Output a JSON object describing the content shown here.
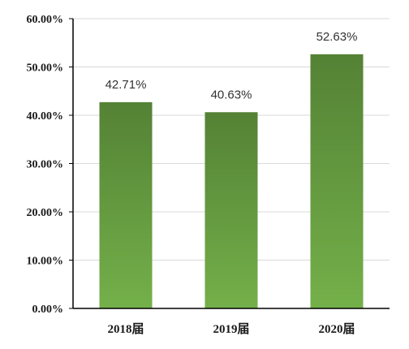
{
  "chart_data": {
    "type": "bar",
    "categories": [
      "2018届",
      "2019届",
      "2020届"
    ],
    "values": [
      42.71,
      40.63,
      52.63
    ],
    "data_labels": [
      "42.71%",
      "40.63%",
      "52.63%"
    ],
    "ylim": [
      0,
      60
    ],
    "yticks": [
      0,
      10,
      20,
      30,
      40,
      50,
      60
    ],
    "ytick_labels": [
      "0.00%",
      "10.00%",
      "20.00%",
      "30.00%",
      "40.00%",
      "50.00%",
      "60.00%"
    ],
    "title": "",
    "xlabel": "",
    "ylabel": "",
    "grid": true,
    "legend": "none",
    "colors": {
      "bar_top": "#548235",
      "bar_bottom": "#74b04a",
      "gridline": "#d9d9d9",
      "axis": "#000000"
    }
  }
}
